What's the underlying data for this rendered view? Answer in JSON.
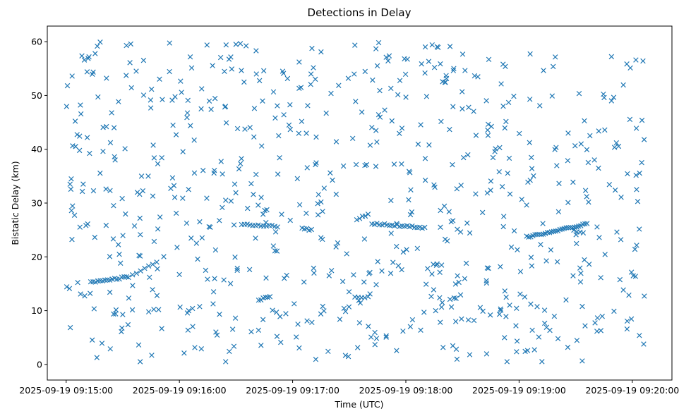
{
  "chart_data": {
    "type": "scatter",
    "title": "Detections in Delay",
    "xlabel": "Time (UTC)",
    "ylabel": "Bistatic Delay (km)",
    "marker": "x",
    "color": "#1f77b4",
    "grid": false,
    "legend": "none",
    "xlim": [
      "2025-09-19 09:14:50",
      "2025-09-19 09:20:21"
    ],
    "ylim": [
      -2.9,
      62.9
    ],
    "x_ticks": [
      "2025-09-19 09:15:00",
      "2025-09-19 09:16:00",
      "2025-09-19 09:17:00",
      "2025-09-19 09:18:00",
      "2025-09-19 09:19:00",
      "2025-09-19 09:20:00"
    ],
    "y_ticks": [
      0,
      10,
      20,
      30,
      40,
      50,
      60
    ],
    "tracks": [
      {
        "x_start": "2025-09-19 09:15:13",
        "x_end": "2025-09-19 09:15:32",
        "y_start": 15.3,
        "y_end": 16.2,
        "count": 16
      },
      {
        "x_start": "2025-09-19 09:15:33",
        "x_end": "2025-09-19 09:15:48",
        "y_start": 16.3,
        "y_end": 19.0,
        "count": 8
      },
      {
        "x_start": "2025-09-19 09:16:33",
        "x_end": "2025-09-19 09:16:52",
        "y_start": 26.0,
        "y_end": 25.7,
        "count": 14
      },
      {
        "x_start": "2025-09-19 09:16:42",
        "x_end": "2025-09-19 09:16:48",
        "y_start": 12.0,
        "y_end": 12.6,
        "count": 6
      },
      {
        "x_start": "2025-09-19 09:17:05",
        "x_end": "2025-09-19 09:17:10",
        "y_start": 25.4,
        "y_end": 25.0,
        "count": 5
      },
      {
        "x_start": "2025-09-19 09:17:33",
        "x_end": "2025-09-19 09:17:40",
        "y_start": 12.5,
        "y_end": 12.5,
        "count": 5
      },
      {
        "x_start": "2025-09-19 09:17:34",
        "x_end": "2025-09-19 09:17:40",
        "y_start": 27.0,
        "y_end": 27.8,
        "count": 5
      },
      {
        "x_start": "2025-09-19 09:17:42",
        "x_end": "2025-09-19 09:18:10",
        "y_start": 26.2,
        "y_end": 25.4,
        "count": 22
      },
      {
        "x_start": "2025-09-19 09:19:04",
        "x_end": "2025-09-19 09:19:36",
        "y_start": 23.7,
        "y_end": 26.1,
        "count": 30
      },
      {
        "x_start": "2025-09-19 09:19:29",
        "x_end": "2025-09-19 09:19:34",
        "y_start": 24.9,
        "y_end": 24.6,
        "count": 4
      }
    ],
    "scatter_points": {
      "count": 700,
      "x_range": [
        "2025-09-19 09:15:00",
        "2025-09-19 09:20:07"
      ],
      "y_range": [
        0.5,
        60
      ]
    }
  }
}
